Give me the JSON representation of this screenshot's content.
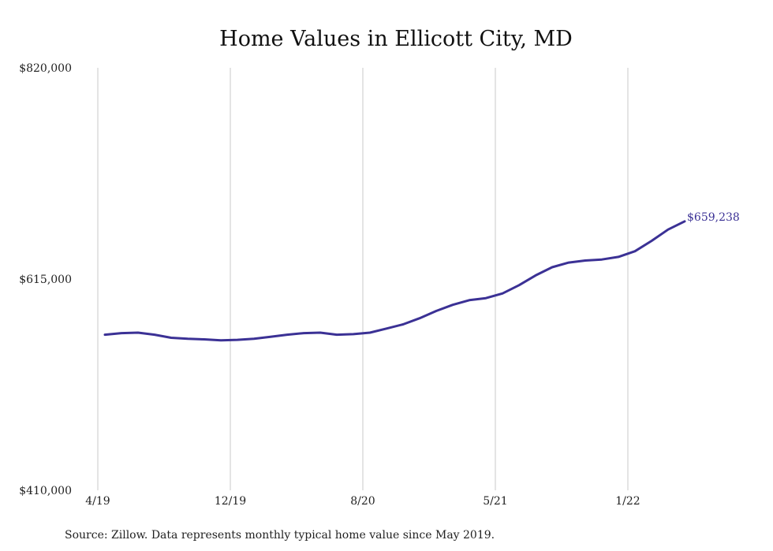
{
  "chart_data": {
    "type": "line",
    "title": "Home Values in Ellicott City, MD",
    "xlabel": "",
    "ylabel": "",
    "ylim": [
      410000,
      820000
    ],
    "y_ticks": [
      "$820,000",
      "$615,000",
      "$410,000"
    ],
    "y_tick_values": [
      820000,
      615000,
      410000
    ],
    "x_ticks": [
      "4/19",
      "12/19",
      "8/20",
      "5/21",
      "1/22"
    ],
    "x_tick_indices": [
      0,
      8,
      16,
      24,
      32
    ],
    "vertical_grid": true,
    "horizontal_grid": false,
    "line_color": "#3b3195",
    "end_label": "$659,238",
    "series": [
      {
        "values": [
          561000,
          562500,
          563000,
          561000,
          558000,
          557000,
          556500,
          555500,
          556000,
          557000,
          559000,
          561000,
          562500,
          563000,
          561000,
          561500,
          563000,
          567000,
          571000,
          577000,
          584000,
          590000,
          594500,
          596500,
          601000,
          609000,
          618500,
          626500,
          631000,
          633000,
          634000,
          636500,
          642000,
          652000,
          663000,
          671000
        ]
      }
    ]
  },
  "footer": {
    "source": "Source: Zillow. Data represents monthly typical home value since May 2019."
  }
}
